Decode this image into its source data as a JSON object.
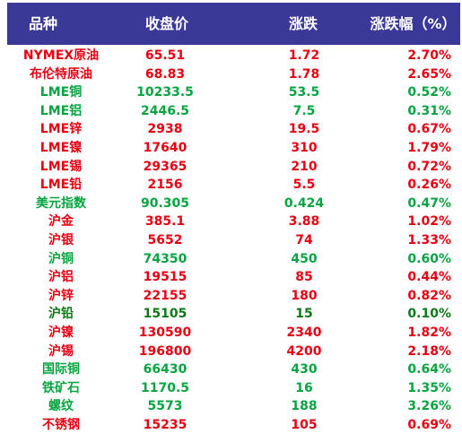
{
  "headers": [
    "品种",
    "收盘价",
    "涨跌",
    "涨跌幅（%）"
  ],
  "colors": {
    "header_bg": "#3b3997",
    "up": "#e60012",
    "up_alt": "#08a442",
    "flat_dark": "#0b7a16"
  },
  "rows": [
    {
      "name": "NYMEX原油",
      "close": "65.51",
      "change": "1.72",
      "pct": "2.70%",
      "color": "red"
    },
    {
      "name": "布伦特原油",
      "close": "68.83",
      "change": "1.78",
      "pct": "2.65%",
      "color": "red"
    },
    {
      "name": "LME铜",
      "close": "10233.5",
      "change": "53.5",
      "pct": "0.52%",
      "color": "green"
    },
    {
      "name": "LME铝",
      "close": "2446.5",
      "change": "7.5",
      "pct": "0.31%",
      "color": "green"
    },
    {
      "name": "LME锌",
      "close": "2938",
      "change": "19.5",
      "pct": "0.67%",
      "color": "red"
    },
    {
      "name": "LME镍",
      "close": "17640",
      "change": "310",
      "pct": "1.79%",
      "color": "red"
    },
    {
      "name": "LME锡",
      "close": "29365",
      "change": "210",
      "pct": "0.72%",
      "color": "red"
    },
    {
      "name": "LME铅",
      "close": "2156",
      "change": "5.5",
      "pct": "0.26%",
      "color": "red"
    },
    {
      "name": "美元指数",
      "close": "90.305",
      "change": "0.424",
      "pct": "0.47%",
      "color": "green"
    },
    {
      "name": "沪金",
      "close": "385.1",
      "change": "3.88",
      "pct": "1.02%",
      "color": "red"
    },
    {
      "name": "沪银",
      "close": "5652",
      "change": "74",
      "pct": "1.33%",
      "color": "red"
    },
    {
      "name": "沪铜",
      "close": "74350",
      "change": "450",
      "pct": "0.60%",
      "color": "green"
    },
    {
      "name": "沪铝",
      "close": "19515",
      "change": "85",
      "pct": "0.44%",
      "color": "red"
    },
    {
      "name": "沪锌",
      "close": "22155",
      "change": "180",
      "pct": "0.82%",
      "color": "red"
    },
    {
      "name": "沪铅",
      "close": "15105",
      "change": "15",
      "pct": "0.10%",
      "color": "dkgreen"
    },
    {
      "name": "沪镍",
      "close": "130590",
      "change": "2340",
      "pct": "1.82%",
      "color": "red"
    },
    {
      "name": "沪锡",
      "close": "196800",
      "change": "4200",
      "pct": "2.18%",
      "color": "red"
    },
    {
      "name": "国际铜",
      "close": "66430",
      "change": "430",
      "pct": "0.64%",
      "color": "green"
    },
    {
      "name": "铁矿石",
      "close": "1170.5",
      "change": "16",
      "pct": "1.35%",
      "color": "green"
    },
    {
      "name": "螺纹",
      "close": "5573",
      "change": "188",
      "pct": "3.26%",
      "color": "green"
    },
    {
      "name": "不锈钢",
      "close": "15235",
      "change": "105",
      "pct": "0.69%",
      "color": "red"
    }
  ]
}
